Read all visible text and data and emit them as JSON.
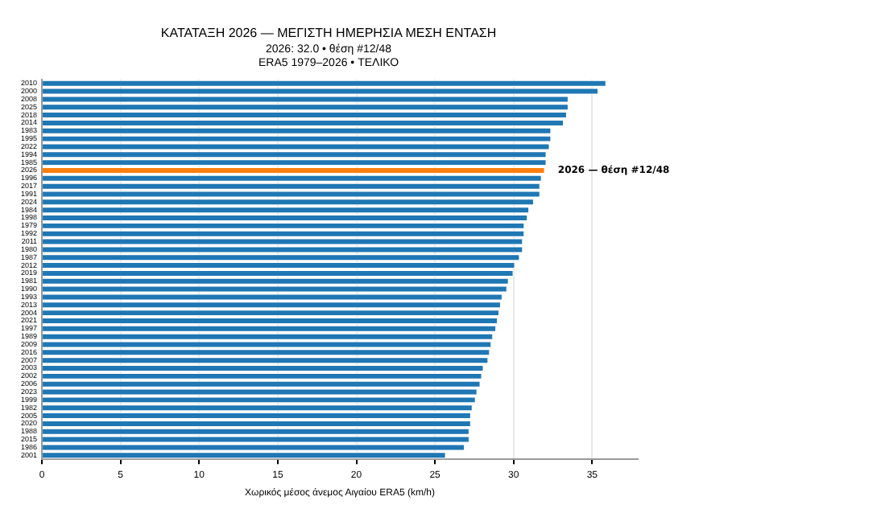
{
  "chart_data": {
    "type": "bar",
    "orientation": "horizontal",
    "title": "ΚΑΤΑΤΑΞΗ 2026 — ΜΕΓΙΣΤΗ ΗΜΕΡΗΣΙΑ ΜΕΣΗ ΕΝΤΑΣΗ",
    "subtitle": "2026: 32.0 • θέση #12/48\nERA5 1979–2026 • ΤΕΛΙΚΟ",
    "xlabel": "Χωρικός μέσος άνεμος Αιγαίου ERA5 (km/h)",
    "categories": [
      "2010",
      "2000",
      "2008",
      "2025",
      "2018",
      "2014",
      "1983",
      "1995",
      "2022",
      "1994",
      "1985",
      "2026",
      "1996",
      "2017",
      "1991",
      "2024",
      "1984",
      "1998",
      "1979",
      "1992",
      "2011",
      "1980",
      "1987",
      "2012",
      "2019",
      "1981",
      "1990",
      "1993",
      "2013",
      "2004",
      "2021",
      "1997",
      "1989",
      "2009",
      "2016",
      "2007",
      "2003",
      "2002",
      "2006",
      "2023",
      "1999",
      "1982",
      "2005",
      "2020",
      "1988",
      "2015",
      "1986",
      "2001"
    ],
    "values": [
      35.9,
      35.4,
      33.5,
      33.5,
      33.4,
      33.2,
      32.4,
      32.4,
      32.3,
      32.1,
      32.1,
      32.0,
      31.8,
      31.7,
      31.7,
      31.3,
      31.0,
      30.9,
      30.7,
      30.7,
      30.6,
      30.6,
      30.4,
      30.1,
      30.0,
      29.7,
      29.6,
      29.3,
      29.2,
      29.1,
      29.0,
      28.9,
      28.7,
      28.6,
      28.5,
      28.4,
      28.1,
      28.0,
      27.9,
      27.7,
      27.6,
      27.4,
      27.3,
      27.3,
      27.2,
      27.2,
      26.9,
      25.7
    ],
    "colors": [
      "#1f77b4",
      "#1f77b4",
      "#1f77b4",
      "#1f77b4",
      "#1f77b4",
      "#1f77b4",
      "#1f77b4",
      "#1f77b4",
      "#1f77b4",
      "#1f77b4",
      "#1f77b4",
      "#ff7f0e",
      "#1f77b4",
      "#1f77b4",
      "#1f77b4",
      "#1f77b4",
      "#1f77b4",
      "#1f77b4",
      "#1f77b4",
      "#1f77b4",
      "#1f77b4",
      "#1f77b4",
      "#1f77b4",
      "#1f77b4",
      "#1f77b4",
      "#1f77b4",
      "#1f77b4",
      "#1f77b4",
      "#1f77b4",
      "#1f77b4",
      "#1f77b4",
      "#1f77b4",
      "#1f77b4",
      "#1f77b4",
      "#1f77b4",
      "#1f77b4",
      "#1f77b4",
      "#1f77b4",
      "#1f77b4",
      "#1f77b4",
      "#1f77b4",
      "#1f77b4",
      "#1f77b4",
      "#1f77b4",
      "#1f77b4",
      "#1f77b4",
      "#1f77b4",
      "#1f77b4"
    ],
    "xlim": [
      0,
      37.9
    ],
    "xticks": [
      0,
      5,
      10,
      15,
      20,
      25,
      30,
      35
    ],
    "grid": "x",
    "annotations": [
      {
        "text": "2026 — θέση #12/48",
        "x": 32.0,
        "y": "2026"
      }
    ]
  }
}
